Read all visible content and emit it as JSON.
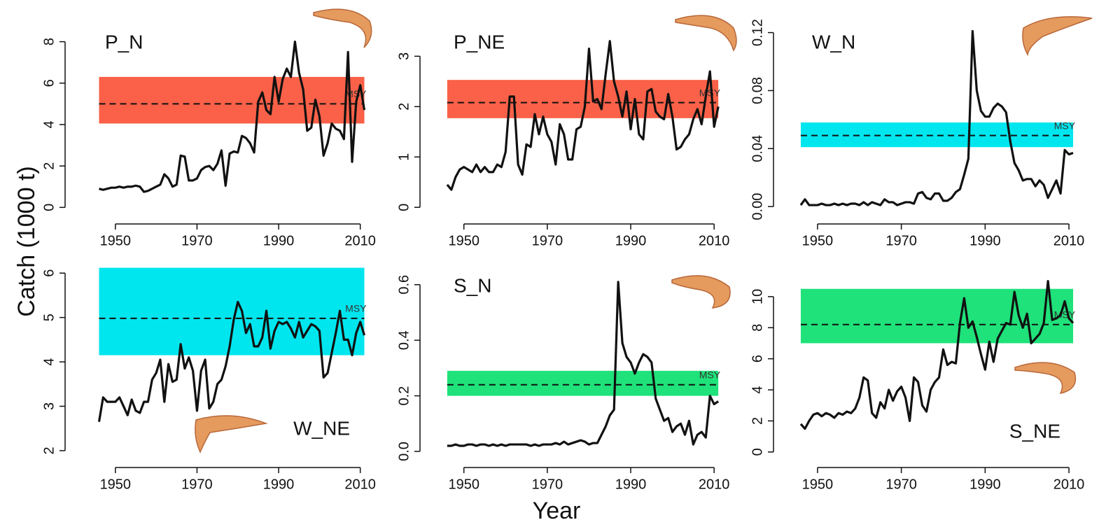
{
  "ylabel": "Catch (1000 t)",
  "xlabel": "Year",
  "chart_data": [
    {
      "type": "line",
      "label": "P_N",
      "annotation": "MSY",
      "msy": 5.0,
      "msy_range": [
        4.05,
        6.3
      ],
      "band_color": "#fa6148",
      "x": [
        1946,
        1947,
        1948,
        1949,
        1950,
        1951,
        1952,
        1953,
        1954,
        1955,
        1956,
        1957,
        1958,
        1959,
        1960,
        1961,
        1962,
        1963,
        1964,
        1965,
        1966,
        1967,
        1968,
        1969,
        1970,
        1971,
        1972,
        1973,
        1974,
        1975,
        1976,
        1977,
        1978,
        1979,
        1980,
        1981,
        1982,
        1983,
        1984,
        1985,
        1986,
        1987,
        1988,
        1989,
        1990,
        1991,
        1992,
        1993,
        1994,
        1995,
        1996,
        1997,
        1998,
        1999,
        2000,
        2001,
        2002,
        2003,
        2004,
        2005,
        2006,
        2007,
        2008,
        2009,
        2010,
        2011
      ],
      "values": [
        0.9,
        0.85,
        0.9,
        0.95,
        0.95,
        1.0,
        0.95,
        1.0,
        1.0,
        1.05,
        1.0,
        0.75,
        0.8,
        0.9,
        1.0,
        1.1,
        1.6,
        1.4,
        1.0,
        1.1,
        2.5,
        2.45,
        1.3,
        1.3,
        1.4,
        1.8,
        1.95,
        2.0,
        1.8,
        2.1,
        2.75,
        1.05,
        2.6,
        2.7,
        2.65,
        3.45,
        3.35,
        3.1,
        2.65,
        5.1,
        5.55,
        4.7,
        4.5,
        6.3,
        5.1,
        6.2,
        6.7,
        6.3,
        8.0,
        6.5,
        5.7,
        3.7,
        3.85,
        5.2,
        4.4,
        2.5,
        3.1,
        4.05,
        3.8,
        3.7,
        3.3,
        7.5,
        2.2,
        5.1,
        5.9,
        4.7
      ],
      "xlim": [
        1943,
        2014
      ],
      "xticks": [
        1950,
        1970,
        1990,
        2010
      ],
      "ylim": [
        -0.8,
        9.0
      ],
      "yticks": [
        0,
        2,
        4,
        6,
        8
      ]
    },
    {
      "type": "line",
      "label": "P_NE",
      "annotation": "MSY",
      "msy": 2.08,
      "msy_range": [
        1.77,
        2.53
      ],
      "band_color": "#fa6148",
      "x": [
        1946,
        1947,
        1948,
        1949,
        1950,
        1951,
        1952,
        1953,
        1954,
        1955,
        1956,
        1957,
        1958,
        1959,
        1960,
        1961,
        1962,
        1963,
        1964,
        1965,
        1966,
        1967,
        1968,
        1969,
        1970,
        1971,
        1972,
        1973,
        1974,
        1975,
        1976,
        1977,
        1978,
        1979,
        1980,
        1981,
        1982,
        1983,
        1984,
        1985,
        1986,
        1987,
        1988,
        1989,
        1990,
        1991,
        1992,
        1993,
        1994,
        1995,
        1996,
        1997,
        1998,
        1999,
        2000,
        2001,
        2002,
        2003,
        2004,
        2005,
        2006,
        2007,
        2008,
        2009,
        2010,
        2011
      ],
      "values": [
        0.45,
        0.35,
        0.6,
        0.75,
        0.8,
        0.75,
        0.7,
        0.85,
        0.7,
        0.8,
        0.7,
        0.7,
        0.85,
        0.8,
        1.1,
        2.2,
        2.2,
        0.85,
        0.65,
        1.25,
        1.2,
        1.85,
        1.45,
        1.8,
        1.45,
        1.3,
        0.85,
        1.65,
        1.45,
        0.95,
        0.95,
        1.55,
        1.6,
        2.0,
        3.15,
        2.1,
        2.15,
        1.95,
        2.65,
        3.3,
        2.5,
        2.2,
        1.8,
        2.3,
        1.55,
        2.15,
        1.45,
        1.35,
        2.3,
        2.35,
        1.9,
        1.8,
        1.75,
        2.25,
        1.8,
        1.15,
        1.2,
        1.35,
        1.45,
        1.75,
        1.95,
        1.65,
        2.2,
        2.7,
        1.6,
        2.0
      ],
      "xlim": [
        1943,
        2014
      ],
      "xticks": [
        1950,
        1970,
        1990,
        2010
      ],
      "ylim": [
        -0.33,
        3.7
      ],
      "yticks": [
        0,
        1,
        2,
        3
      ]
    },
    {
      "type": "line",
      "label": "W_N",
      "annotation": "MSY",
      "msy": 0.049,
      "msy_range": [
        0.041,
        0.058
      ],
      "band_color": "#00e6ee",
      "x": [
        1946,
        1947,
        1948,
        1949,
        1950,
        1951,
        1952,
        1953,
        1954,
        1955,
        1956,
        1957,
        1958,
        1959,
        1960,
        1961,
        1962,
        1963,
        1964,
        1965,
        1966,
        1967,
        1968,
        1969,
        1970,
        1971,
        1972,
        1973,
        1974,
        1975,
        1976,
        1977,
        1978,
        1979,
        1980,
        1981,
        1982,
        1983,
        1984,
        1985,
        1986,
        1987,
        1988,
        1989,
        1990,
        1991,
        1992,
        1993,
        1994,
        1995,
        1996,
        1997,
        1998,
        1999,
        2000,
        2001,
        2002,
        2003,
        2004,
        2005,
        2006,
        2007,
        2008,
        2009,
        2010,
        2011
      ],
      "values": [
        0.001,
        0.005,
        0.001,
        0.001,
        0.001,
        0.002,
        0.001,
        0.001,
        0.002,
        0.001,
        0.002,
        0.001,
        0.002,
        0.002,
        0.001,
        0.003,
        0.001,
        0.003,
        0.002,
        0.001,
        0.005,
        0.003,
        0.003,
        0.001,
        0.002,
        0.003,
        0.003,
        0.002,
        0.009,
        0.01,
        0.006,
        0.005,
        0.009,
        0.009,
        0.004,
        0.004,
        0.006,
        0.01,
        0.012,
        0.022,
        0.033,
        0.121,
        0.08,
        0.066,
        0.062,
        0.062,
        0.068,
        0.071,
        0.069,
        0.065,
        0.045,
        0.03,
        0.025,
        0.018,
        0.019,
        0.019,
        0.014,
        0.018,
        0.015,
        0.006,
        0.012,
        0.018,
        0.009,
        0.039,
        0.036,
        0.037
      ],
      "xlim": [
        1943,
        2014
      ],
      "xticks": [
        1950,
        1970,
        1990,
        2010
      ],
      "ylim": [
        -0.012,
        0.128
      ],
      "yticks": [
        {
          "value": 0,
          "label": "0.00"
        },
        0.04,
        0.08,
        0.12
      ]
    },
    {
      "type": "line",
      "label": "W_NE",
      "annotation": "MSY",
      "msy": 4.98,
      "msy_range": [
        4.15,
        6.12
      ],
      "band_color": "#00e6ee",
      "x": [
        1946,
        1947,
        1948,
        1949,
        1950,
        1951,
        1952,
        1953,
        1954,
        1955,
        1956,
        1957,
        1958,
        1959,
        1960,
        1961,
        1962,
        1963,
        1964,
        1965,
        1966,
        1967,
        1968,
        1969,
        1970,
        1971,
        1972,
        1973,
        1974,
        1975,
        1976,
        1977,
        1978,
        1979,
        1980,
        1981,
        1982,
        1983,
        1984,
        1985,
        1986,
        1987,
        1988,
        1989,
        1990,
        1991,
        1992,
        1993,
        1994,
        1995,
        1996,
        1997,
        1998,
        1999,
        2000,
        2001,
        2002,
        2003,
        2004,
        2005,
        2006,
        2007,
        2008,
        2009,
        2010,
        2011
      ],
      "values": [
        2.65,
        3.2,
        3.1,
        3.1,
        3.1,
        3.2,
        3.0,
        2.8,
        3.15,
        2.9,
        2.85,
        3.1,
        3.1,
        3.6,
        3.75,
        4.05,
        3.1,
        3.95,
        3.55,
        3.6,
        4.4,
        3.85,
        4.1,
        3.8,
        2.9,
        3.8,
        4.05,
        2.95,
        3.1,
        3.5,
        3.6,
        3.9,
        4.35,
        4.95,
        5.35,
        5.15,
        4.65,
        4.85,
        4.35,
        4.35,
        4.55,
        5.15,
        4.3,
        4.7,
        4.9,
        4.85,
        4.9,
        4.75,
        4.55,
        4.9,
        4.55,
        4.7,
        4.85,
        4.8,
        4.7,
        3.65,
        3.75,
        4.2,
        4.65,
        5.15,
        4.5,
        4.5,
        4.15,
        4.65,
        4.9,
        4.6
      ],
      "xlim": [
        1943,
        2014
      ],
      "xticks": [
        1950,
        1970,
        1990,
        2010
      ],
      "ylim": [
        1.62,
        6.24
      ],
      "yticks": [
        2,
        3,
        4,
        5,
        6
      ]
    },
    {
      "type": "line",
      "label": "S_N",
      "annotation": "MSY",
      "msy": 0.24,
      "msy_range": [
        0.2,
        0.29
      ],
      "band_color": "#1fe27a",
      "x": [
        1946,
        1947,
        1948,
        1949,
        1950,
        1951,
        1952,
        1953,
        1954,
        1955,
        1956,
        1957,
        1958,
        1959,
        1960,
        1961,
        1962,
        1963,
        1964,
        1965,
        1966,
        1967,
        1968,
        1969,
        1970,
        1971,
        1972,
        1973,
        1974,
        1975,
        1976,
        1977,
        1978,
        1979,
        1980,
        1981,
        1982,
        1983,
        1984,
        1985,
        1986,
        1987,
        1988,
        1989,
        1990,
        1991,
        1992,
        1993,
        1994,
        1995,
        1996,
        1997,
        1998,
        1999,
        2000,
        2001,
        2002,
        2003,
        2004,
        2005,
        2006,
        2007,
        2008,
        2009,
        2010,
        2011
      ],
      "values": [
        0.02,
        0.02,
        0.025,
        0.02,
        0.02,
        0.025,
        0.025,
        0.02,
        0.025,
        0.025,
        0.02,
        0.025,
        0.02,
        0.025,
        0.02,
        0.025,
        0.025,
        0.025,
        0.025,
        0.025,
        0.02,
        0.025,
        0.02,
        0.025,
        0.025,
        0.025,
        0.03,
        0.025,
        0.035,
        0.025,
        0.03,
        0.035,
        0.04,
        0.035,
        0.025,
        0.03,
        0.03,
        0.06,
        0.09,
        0.13,
        0.15,
        0.61,
        0.39,
        0.34,
        0.32,
        0.28,
        0.32,
        0.35,
        0.34,
        0.32,
        0.19,
        0.15,
        0.11,
        0.12,
        0.07,
        0.09,
        0.1,
        0.06,
        0.11,
        0.025,
        0.06,
        0.07,
        0.05,
        0.2,
        0.17,
        0.18
      ],
      "xlim": [
        1943,
        2014
      ],
      "xticks": [
        1950,
        1970,
        1990,
        2010
      ],
      "ylim": [
        -0.058,
        0.68
      ],
      "yticks": [
        {
          "value": 0,
          "label": "0.0"
        },
        0.2,
        0.4,
        0.6
      ]
    },
    {
      "type": "line",
      "label": "S_NE",
      "annotation": "MSY",
      "msy": 8.2,
      "msy_range": [
        7.0,
        10.5
      ],
      "band_color": "#1fe27a",
      "x": [
        1946,
        1947,
        1948,
        1949,
        1950,
        1951,
        1952,
        1953,
        1954,
        1955,
        1956,
        1957,
        1958,
        1959,
        1960,
        1961,
        1962,
        1963,
        1964,
        1965,
        1966,
        1967,
        1968,
        1969,
        1970,
        1971,
        1972,
        1973,
        1974,
        1975,
        1976,
        1977,
        1978,
        1979,
        1980,
        1981,
        1982,
        1983,
        1984,
        1985,
        1986,
        1987,
        1988,
        1989,
        1990,
        1991,
        1992,
        1993,
        1994,
        1995,
        1996,
        1997,
        1998,
        1999,
        2000,
        2001,
        2002,
        2003,
        2004,
        2005,
        2006,
        2007,
        2008,
        2009,
        2010,
        2011
      ],
      "values": [
        1.8,
        1.5,
        2.0,
        2.4,
        2.5,
        2.3,
        2.5,
        2.4,
        2.2,
        2.5,
        2.4,
        2.6,
        2.5,
        2.8,
        3.5,
        4.8,
        4.6,
        2.5,
        2.2,
        3.2,
        2.8,
        4.0,
        3.3,
        3.9,
        4.2,
        3.5,
        2.0,
        4.8,
        4.5,
        3.0,
        2.6,
        4.0,
        4.5,
        4.8,
        6.6,
        5.6,
        5.8,
        5.7,
        8.3,
        9.9,
        8.0,
        8.4,
        7.4,
        6.3,
        5.3,
        7.1,
        5.8,
        7.3,
        7.8,
        8.3,
        8.2,
        10.3,
        8.8,
        8.0,
        8.9,
        7.0,
        7.3,
        7.6,
        8.3,
        11.0,
        8.5,
        8.6,
        8.8,
        9.7,
        8.6,
        8.3
      ],
      "xlim": [
        1943,
        2014
      ],
      "xticks": [
        1950,
        1970,
        1990,
        2010
      ],
      "ylim": [
        -1.0,
        12.2
      ],
      "yticks": [
        0,
        2,
        4,
        6,
        8,
        10
      ]
    }
  ]
}
